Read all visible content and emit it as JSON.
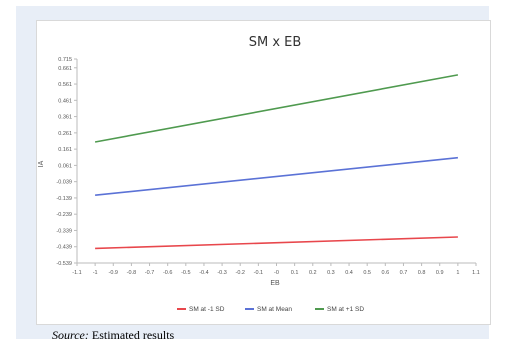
{
  "chart_data": {
    "type": "line",
    "title": "SM x EB",
    "xlabel": "EB",
    "ylabel": "IA",
    "xlim": [
      -1.1,
      1.1
    ],
    "ylim": [
      -0.539,
      0.715
    ],
    "x_ticks": [
      "-1.1",
      "-1",
      "-0.9",
      "-0.8",
      "-0.7",
      "-0.6",
      "-0.5",
      "-0.4",
      "-0.3",
      "-0.2",
      "-0.1",
      "-0",
      "0.1",
      "0.2",
      "0.3",
      "0.4",
      "0.5",
      "0.6",
      "0.7",
      "0.8",
      "0.9",
      "1",
      "1.1"
    ],
    "x_tick_values": [
      -1.1,
      -1,
      -0.9,
      -0.8,
      -0.7,
      -0.6,
      -0.5,
      -0.4,
      -0.3,
      -0.2,
      -0.1,
      0,
      0.1,
      0.2,
      0.3,
      0.4,
      0.5,
      0.6,
      0.7,
      0.8,
      0.9,
      1,
      1.1
    ],
    "y_ticks": [
      "0.715",
      "0.661",
      "0.561",
      "0.461",
      "0.361",
      "0.261",
      "0.161",
      "0.061",
      "-0.039",
      "-0.139",
      "-0.239",
      "-0.339",
      "-0.439",
      "-0.539"
    ],
    "y_tick_values": [
      0.715,
      0.661,
      0.561,
      0.461,
      0.361,
      0.261,
      0.161,
      0.061,
      -0.039,
      -0.139,
      -0.239,
      -0.339,
      -0.439,
      -0.539
    ],
    "grid": false,
    "legend_position": "bottom",
    "series": [
      {
        "name": "SM at -1 SD",
        "color": "#e8474c",
        "x": [
          -1,
          1
        ],
        "y": [
          -0.449,
          -0.379
        ]
      },
      {
        "name": "SM at Mean",
        "color": "#5b72d6",
        "x": [
          -1,
          1
        ],
        "y": [
          -0.122,
          0.108
        ]
      },
      {
        "name": "SM at +1 SD",
        "color": "#4f9a4f",
        "x": [
          -1,
          1
        ],
        "y": [
          0.205,
          0.617
        ]
      }
    ]
  },
  "source": {
    "label": "Source:",
    "text": " Estimated results"
  }
}
